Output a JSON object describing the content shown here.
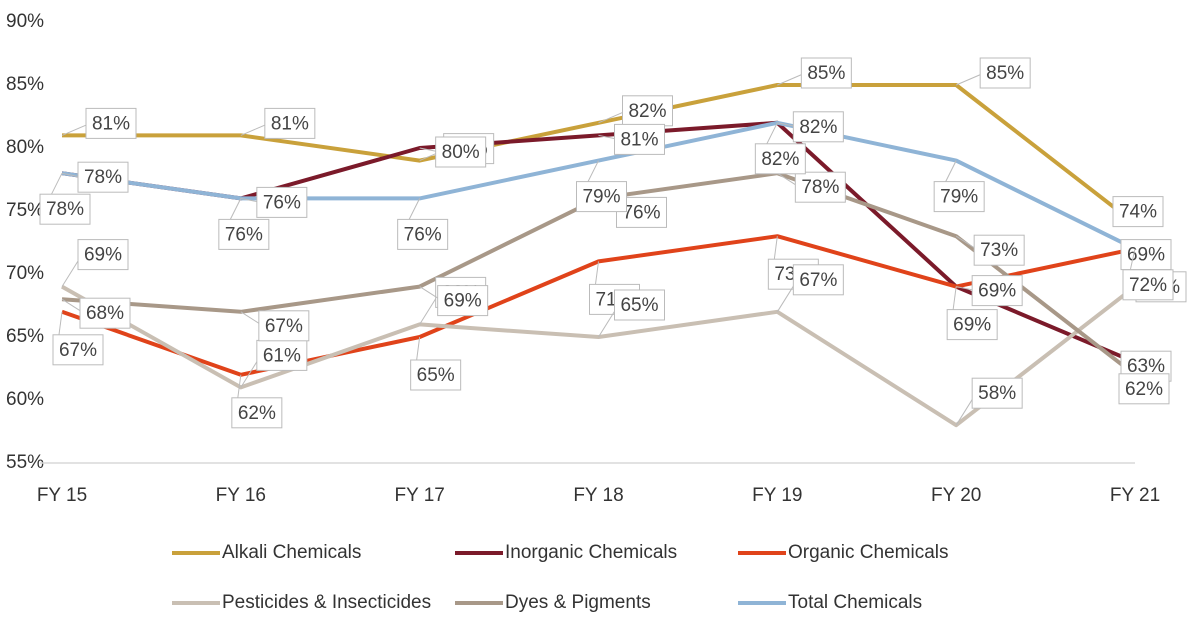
{
  "chart_data": {
    "type": "line",
    "categories": [
      "FY 15",
      "FY 16",
      "FY 17",
      "FY 18",
      "FY 19",
      "FY 20",
      "FY 21"
    ],
    "ylim": [
      55,
      90
    ],
    "yticks": [
      {
        "value": 55,
        "label": "55%"
      },
      {
        "value": 60,
        "label": "60%"
      },
      {
        "value": 65,
        "label": "65%"
      },
      {
        "value": 70,
        "label": "70%"
      },
      {
        "value": 75,
        "label": "75%"
      },
      {
        "value": 80,
        "label": "80%"
      },
      {
        "value": 85,
        "label": "85%"
      },
      {
        "value": 90,
        "label": "90%"
      }
    ],
    "grid": false,
    "legend": "bottom",
    "series": [
      {
        "name": "Alkali Chemicals",
        "color": "#c9a13b",
        "values": [
          81,
          81,
          79,
          82,
          85,
          85,
          74
        ],
        "value_labels": [
          "81%",
          "81%",
          "79%",
          "82%",
          "85%",
          "85%",
          "74%"
        ]
      },
      {
        "name": "Inorganic Chemicals",
        "color": "#7b1a2a",
        "values": [
          78,
          76,
          80,
          81,
          82,
          69,
          63
        ],
        "value_labels": [
          "78%",
          "76%",
          "80%",
          "81%",
          "82%",
          "69%",
          "63%"
        ]
      },
      {
        "name": "Organic Chemicals",
        "color": "#e0431a",
        "values": [
          67,
          62,
          65,
          71,
          73,
          69,
          72
        ],
        "value_labels": [
          "67%",
          "62%",
          "65%",
          "71%",
          "73%",
          "69%",
          "72%"
        ]
      },
      {
        "name": "Pesticides & Insecticides",
        "color": "#c9bfb3",
        "values": [
          69,
          61,
          66,
          65,
          67,
          58,
          69
        ],
        "value_labels": [
          "69%",
          "61%",
          "66%",
          "65%",
          "67%",
          "58%",
          "69%"
        ]
      },
      {
        "name": "Dyes & Pigments",
        "color": "#a89888",
        "values": [
          68,
          67,
          69,
          76,
          78,
          73,
          62
        ],
        "value_labels": [
          "68%",
          "67%",
          "69%",
          "76%",
          "78%",
          "73%",
          "62%"
        ]
      },
      {
        "name": "Total Chemicals",
        "color": "#8fb4d6",
        "values": [
          78,
          76,
          76,
          79,
          82,
          79,
          72
        ],
        "value_labels": [
          "78%",
          "76%",
          "76%",
          "79%",
          "82%",
          "79%",
          "72%"
        ]
      }
    ]
  }
}
